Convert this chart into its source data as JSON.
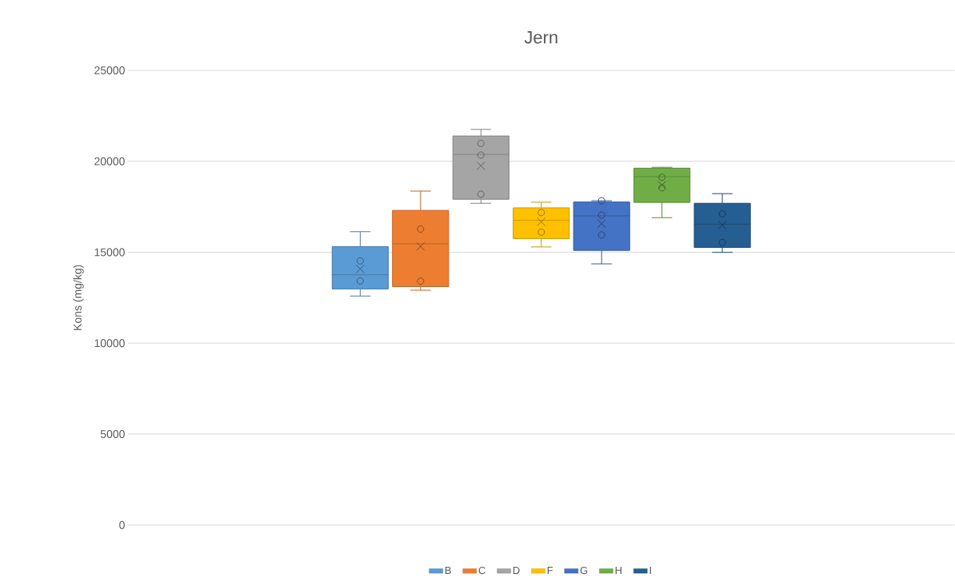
{
  "chart_data": {
    "type": "box",
    "title": "Jern",
    "ylabel": "Kons (mg/kg)",
    "categories": [
      null
    ],
    "ylim": [
      0,
      25000
    ],
    "yticks": [
      0,
      5000,
      10000,
      15000,
      20000,
      25000
    ],
    "grid": "y",
    "legend": "bottom",
    "series": [
      {
        "name": "B",
        "color": "#5b9bd5",
        "boxes": [
          {
            "low": 12590,
            "q1": 12980,
            "median": 13760,
            "q3": 15310,
            "high": 16130,
            "mean": 14080,
            "outliers": [
              14520,
              13420
            ]
          }
        ]
      },
      {
        "name": "C",
        "color": "#ed7d31",
        "boxes": [
          {
            "low": 12910,
            "q1": 13110,
            "median": 15460,
            "q3": 17300,
            "high": 18360,
            "mean": 15320,
            "outliers": [
              16270,
              13410
            ]
          }
        ]
      },
      {
        "name": "D",
        "color": "#a5a5a5",
        "boxes": [
          {
            "low": 17690,
            "q1": 17910,
            "median": 20380,
            "q3": 21390,
            "high": 21750,
            "mean": 19750,
            "outliers": [
              20980,
              20340,
              18190
            ]
          }
        ]
      },
      {
        "name": "F",
        "color": "#ffc000",
        "boxes": [
          {
            "low": 15290,
            "q1": 15750,
            "median": 16750,
            "q3": 17440,
            "high": 17750,
            "mean": 16670,
            "outliers": [
              17180,
              16100
            ]
          }
        ]
      },
      {
        "name": "G",
        "color": "#4472c4",
        "boxes": [
          {
            "low": 14360,
            "q1": 15100,
            "median": 17000,
            "q3": 17760,
            "high": 17830,
            "mean": 16570,
            "outliers": [
              17830,
              17040,
              15950
            ]
          }
        ]
      },
      {
        "name": "H",
        "color": "#70ad47",
        "boxes": [
          {
            "low": 16900,
            "q1": 17740,
            "median": 19150,
            "q3": 19620,
            "high": 19670,
            "mean": 18690,
            "outliers": [
              19120,
              18540
            ]
          }
        ]
      },
      {
        "name": "I",
        "color": "#255e91",
        "boxes": [
          {
            "low": 14990,
            "q1": 15260,
            "median": 16540,
            "q3": 17690,
            "high": 18220,
            "mean": 16490,
            "outliers": [
              17110,
              15540
            ]
          }
        ]
      }
    ]
  }
}
